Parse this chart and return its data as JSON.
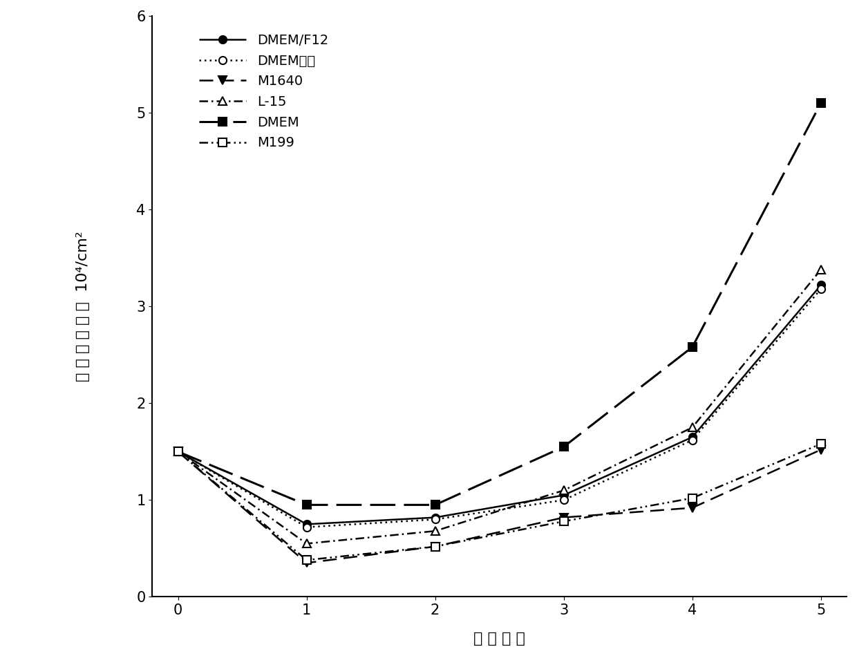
{
  "x": [
    0,
    1,
    2,
    3,
    4,
    5
  ],
  "series": [
    {
      "label": "DMEM/F12",
      "y": [
        1.5,
        0.75,
        0.82,
        1.05,
        1.65,
        3.22
      ],
      "linestyle": "solid",
      "marker": "o",
      "marker_filled": true,
      "color": "#000000",
      "linewidth": 1.8,
      "markersize": 8
    },
    {
      "label": "DMEM高糖",
      "y": [
        1.5,
        0.72,
        0.8,
        1.0,
        1.62,
        3.18
      ],
      "linestyle": "dotted",
      "marker": "o",
      "marker_filled": false,
      "color": "#000000",
      "linewidth": 1.8,
      "markersize": 8
    },
    {
      "label": "M1640",
      "y": [
        1.5,
        0.35,
        0.52,
        0.82,
        0.92,
        1.52
      ],
      "linestyle": "dashed",
      "marker": "v",
      "marker_filled": true,
      "color": "#000000",
      "linewidth": 1.8,
      "markersize": 8
    },
    {
      "label": "L-15",
      "y": [
        1.5,
        0.55,
        0.68,
        1.1,
        1.75,
        3.38
      ],
      "linestyle": "dashdot",
      "marker": "^",
      "marker_filled": false,
      "color": "#000000",
      "linewidth": 1.8,
      "markersize": 8
    },
    {
      "label": "DMEM",
      "y": [
        1.5,
        0.95,
        0.95,
        1.55,
        2.58,
        5.1
      ],
      "linestyle": "longdash",
      "marker": "s",
      "marker_filled": true,
      "color": "#000000",
      "linewidth": 2.2,
      "markersize": 9
    },
    {
      "label": "M199",
      "y": [
        1.5,
        0.38,
        0.52,
        0.78,
        1.02,
        1.58
      ],
      "linestyle": "dashdotdot",
      "marker": "s",
      "marker_filled": false,
      "color": "#000000",
      "linewidth": 1.8,
      "markersize": 8
    }
  ],
  "xlabel": "培 养 天 数",
  "ylabel_chars": [
    "肌",
    "肉",
    "细",
    "胞",
    "数",
    "量",
    "10⁴/cm²"
  ],
  "xlim": [
    -0.2,
    5.2
  ],
  "ylim": [
    0,
    6
  ],
  "yticks": [
    0,
    1,
    2,
    3,
    4,
    5,
    6
  ],
  "xticks": [
    0,
    1,
    2,
    3,
    4,
    5
  ],
  "label_fontsize": 16,
  "tick_fontsize": 15,
  "legend_fontsize": 14,
  "background_color": "#ffffff"
}
